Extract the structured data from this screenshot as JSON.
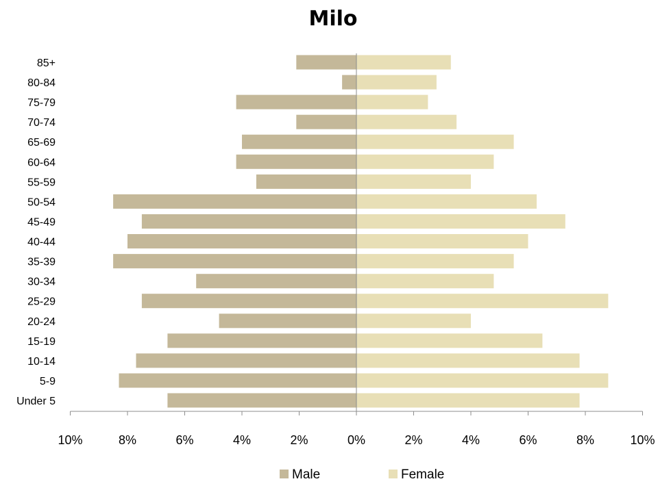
{
  "chart_data": {
    "type": "bar",
    "orientation": "horizontal",
    "title": "Milo",
    "xlabel": "",
    "ylabel": "",
    "categories": [
      "85+",
      "80-84",
      "75-79",
      "70-74",
      "65-69",
      "60-64",
      "55-59",
      "50-54",
      "45-49",
      "40-44",
      "35-39",
      "30-34",
      "25-29",
      "20-24",
      "15-19",
      "10-14",
      "5-9",
      "Under 5"
    ],
    "series": [
      {
        "name": "Male",
        "color": "#c4b899",
        "values": [
          2.1,
          0.5,
          4.2,
          2.1,
          4.0,
          4.2,
          3.5,
          8.5,
          7.5,
          8.0,
          8.5,
          5.6,
          7.5,
          4.8,
          6.6,
          7.7,
          8.3,
          6.6
        ]
      },
      {
        "name": "Female",
        "color": "#e8dfb6",
        "values": [
          3.3,
          2.8,
          2.5,
          3.5,
          5.5,
          4.8,
          4.0,
          6.3,
          7.3,
          6.0,
          5.5,
          4.8,
          8.8,
          4.0,
          6.5,
          7.8,
          8.8,
          7.8
        ]
      }
    ],
    "xlim": [
      -10,
      10
    ],
    "xticks": [
      "10%",
      "8%",
      "6%",
      "4%",
      "2%",
      "0%",
      "2%",
      "4%",
      "6%",
      "8%",
      "10%"
    ],
    "legend_position": "bottom",
    "grid": false
  }
}
